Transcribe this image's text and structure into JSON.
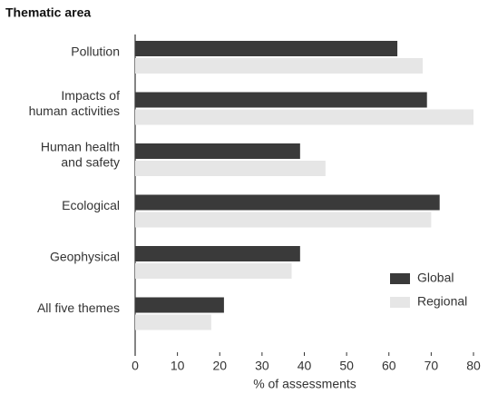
{
  "chart_data": {
    "type": "hbar",
    "title": "Thematic area",
    "xlabel": "% of assessments",
    "categories": [
      "Pollution",
      "Impacts of\nhuman activities",
      "Human health\nand safety",
      "Ecological",
      "Geophysical",
      "All five themes"
    ],
    "series": [
      {
        "name": "Global",
        "color": "#3a3a3a",
        "values": [
          62,
          69,
          39,
          72,
          39,
          21
        ]
      },
      {
        "name": "Regional",
        "color": "#e6e6e6",
        "values": [
          68,
          80,
          45,
          70,
          37,
          18
        ]
      }
    ],
    "xlim": [
      0,
      80
    ],
    "xticks": [
      0,
      10,
      20,
      30,
      40,
      50,
      60,
      70,
      80
    ],
    "legend": "lower right"
  }
}
